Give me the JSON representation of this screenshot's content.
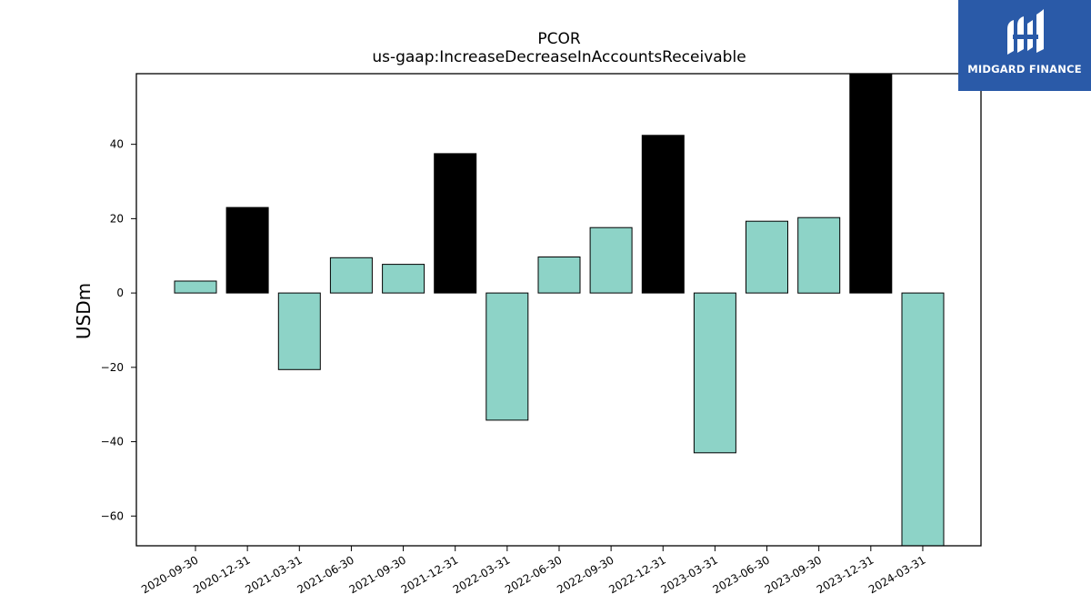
{
  "chart_data": {
    "type": "bar",
    "title": "PCOR",
    "subtitle": "us-gaap:IncreaseDecreaseInAccountsReceivable",
    "xlabel": "",
    "ylabel": "USDm",
    "ylim": [
      -68,
      59
    ],
    "yticks": [
      40,
      20,
      0,
      -20,
      -40,
      -60
    ],
    "ytick_labels": [
      "40",
      "20",
      "0",
      "−20",
      "−40",
      "−60"
    ],
    "grid": false,
    "categories": [
      "2020-09-30",
      "2020-12-31",
      "2021-03-31",
      "2021-06-30",
      "2021-09-30",
      "2021-12-31",
      "2022-03-31",
      "2022-06-30",
      "2022-09-30",
      "2022-12-31",
      "2023-03-31",
      "2023-06-30",
      "2023-09-30",
      "2023-12-31",
      "2024-03-31"
    ],
    "values": [
      3.2,
      23.0,
      -20.6,
      9.5,
      7.7,
      37.5,
      -34.2,
      9.7,
      17.6,
      42.4,
      -43.0,
      19.3,
      20.3,
      59.0,
      -68.0
    ],
    "bar_colors": [
      "#8dd3c7",
      "#000000",
      "#8dd3c7",
      "#8dd3c7",
      "#8dd3c7",
      "#000000",
      "#8dd3c7",
      "#8dd3c7",
      "#8dd3c7",
      "#000000",
      "#8dd3c7",
      "#8dd3c7",
      "#8dd3c7",
      "#000000",
      "#8dd3c7"
    ]
  },
  "logo": {
    "text": "MIDGARD FINANCE",
    "icon": "midgard-logo-icon",
    "background": "#2a5aa8"
  }
}
